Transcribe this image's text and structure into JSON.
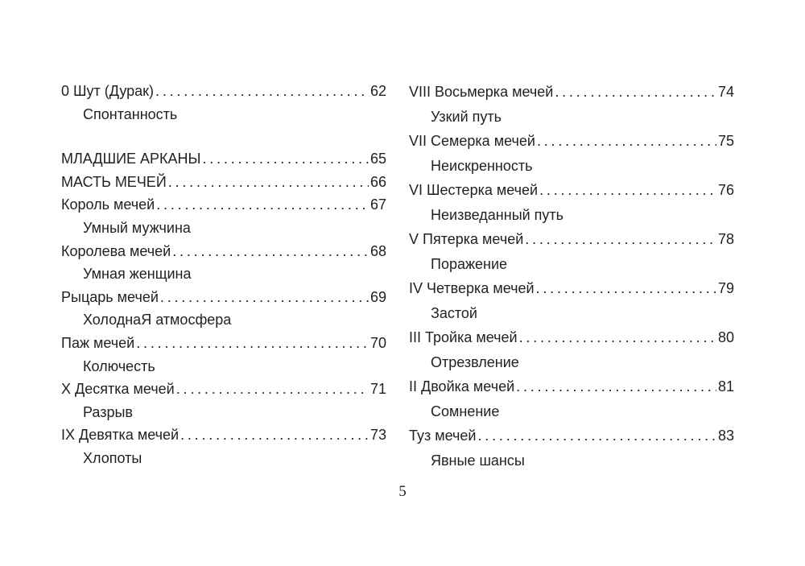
{
  "left": [
    {
      "title": "0 Шут (Дурак)",
      "page": "62"
    },
    {
      "sub": "Спонтанность"
    },
    {
      "gap": true
    },
    {
      "title": "МЛАДШИЕ АРКАНЫ",
      "page": "65"
    },
    {
      "title": "МАСТЬ МЕЧЕЙ",
      "page": "66"
    },
    {
      "title": "Король мечей",
      "page": "67"
    },
    {
      "sub": "Умный мужчина"
    },
    {
      "title": "Королева мечей",
      "page": "68"
    },
    {
      "sub": "Умная женщина"
    },
    {
      "title": "Рыцарь мечей",
      "page": "69"
    },
    {
      "sub": "ХолоднаЯ атмосфера"
    },
    {
      "title": "Паж мечей",
      "page": "70"
    },
    {
      "sub": "Колючесть"
    },
    {
      "title": "X Десятка мечей",
      "page": "71"
    },
    {
      "sub": "Разрыв"
    },
    {
      "title": "IX Девятка мечей",
      "page": "73"
    },
    {
      "sub": "Хлопоты"
    }
  ],
  "right": [
    {
      "title": "VIII Восьмерка мечей",
      "page": "74"
    },
    {
      "sub": "Узкий путь"
    },
    {
      "title": "VII Семерка мечей",
      "page": "75"
    },
    {
      "sub": "Неискренность"
    },
    {
      "title": "VI Шестерка мечей",
      "page": "76"
    },
    {
      "sub": "Неизведанный путь"
    },
    {
      "title": "V Пятерка мечей",
      "page": "78"
    },
    {
      "sub": "Поражение"
    },
    {
      "title": "IV Четверка мечей",
      "page": "79"
    },
    {
      "sub": "Застой"
    },
    {
      "title": "III Тройка мечей",
      "page": "80"
    },
    {
      "sub": "Отрезвление"
    },
    {
      "title": "II Двойка мечей",
      "page": "81"
    },
    {
      "sub": "Сомнение"
    },
    {
      "title": "Туз мечей",
      "page": "83"
    },
    {
      "sub": "Явные шансы"
    }
  ],
  "page_number": "5"
}
